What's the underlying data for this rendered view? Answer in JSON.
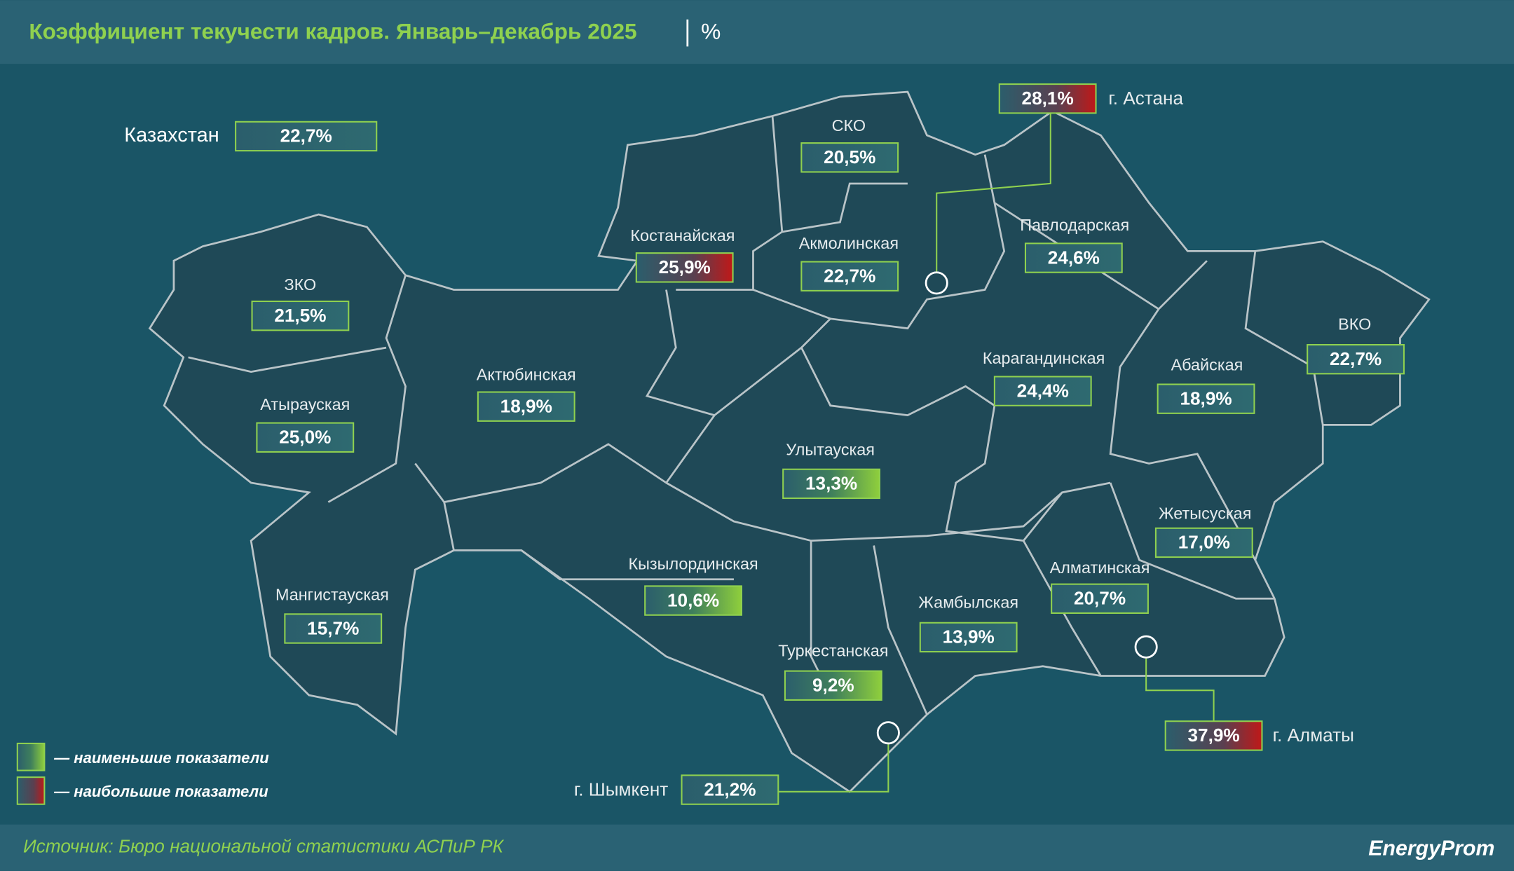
{
  "header": {
    "title": "Коэффициент текучести кадров. Январь–декабрь 2025",
    "unit": "%"
  },
  "country": {
    "name": "Казахстан",
    "value": "22,7%"
  },
  "regions": [
    {
      "name": "СКО",
      "value": "20,5%"
    },
    {
      "name": "Костанайская",
      "value": "25,9%",
      "highlight": "high"
    },
    {
      "name": "Акмолинская",
      "value": "22,7%"
    },
    {
      "name": "Павлодарская",
      "value": "24,6%"
    },
    {
      "name": "ЗКО",
      "value": "21,5%"
    },
    {
      "name": "Актюбинская",
      "value": "18,9%"
    },
    {
      "name": "Атырауская",
      "value": "25,0%"
    },
    {
      "name": "Карагандинская",
      "value": "24,4%"
    },
    {
      "name": "Абайская",
      "value": "18,9%"
    },
    {
      "name": "ВКО",
      "value": "22,7%"
    },
    {
      "name": "Улытауская",
      "value": "13,3%",
      "highlight": "low"
    },
    {
      "name": "Жетысуская",
      "value": "17,0%"
    },
    {
      "name": "Кызылординская",
      "value": "10,6%",
      "highlight": "low"
    },
    {
      "name": "Алматинская",
      "value": "20,7%"
    },
    {
      "name": "Мангистауская",
      "value": "15,7%"
    },
    {
      "name": "Жамбылская",
      "value": "13,9%"
    },
    {
      "name": "Туркестанская",
      "value": "9,2%",
      "highlight": "low"
    }
  ],
  "cities": [
    {
      "name": "г. Астана",
      "value": "28,1%",
      "highlight": "high"
    },
    {
      "name": "г. Алматы",
      "value": "37,9%",
      "highlight": "high"
    },
    {
      "name": "г. Шымкент",
      "value": "21,2%"
    }
  ],
  "legend": {
    "low": "— наименьшие показатели",
    "high": "— наибольшие показатели"
  },
  "footer": {
    "source": "Источник: Бюро национальной статистики АСПиР РК",
    "logo": "EnergyProm"
  }
}
